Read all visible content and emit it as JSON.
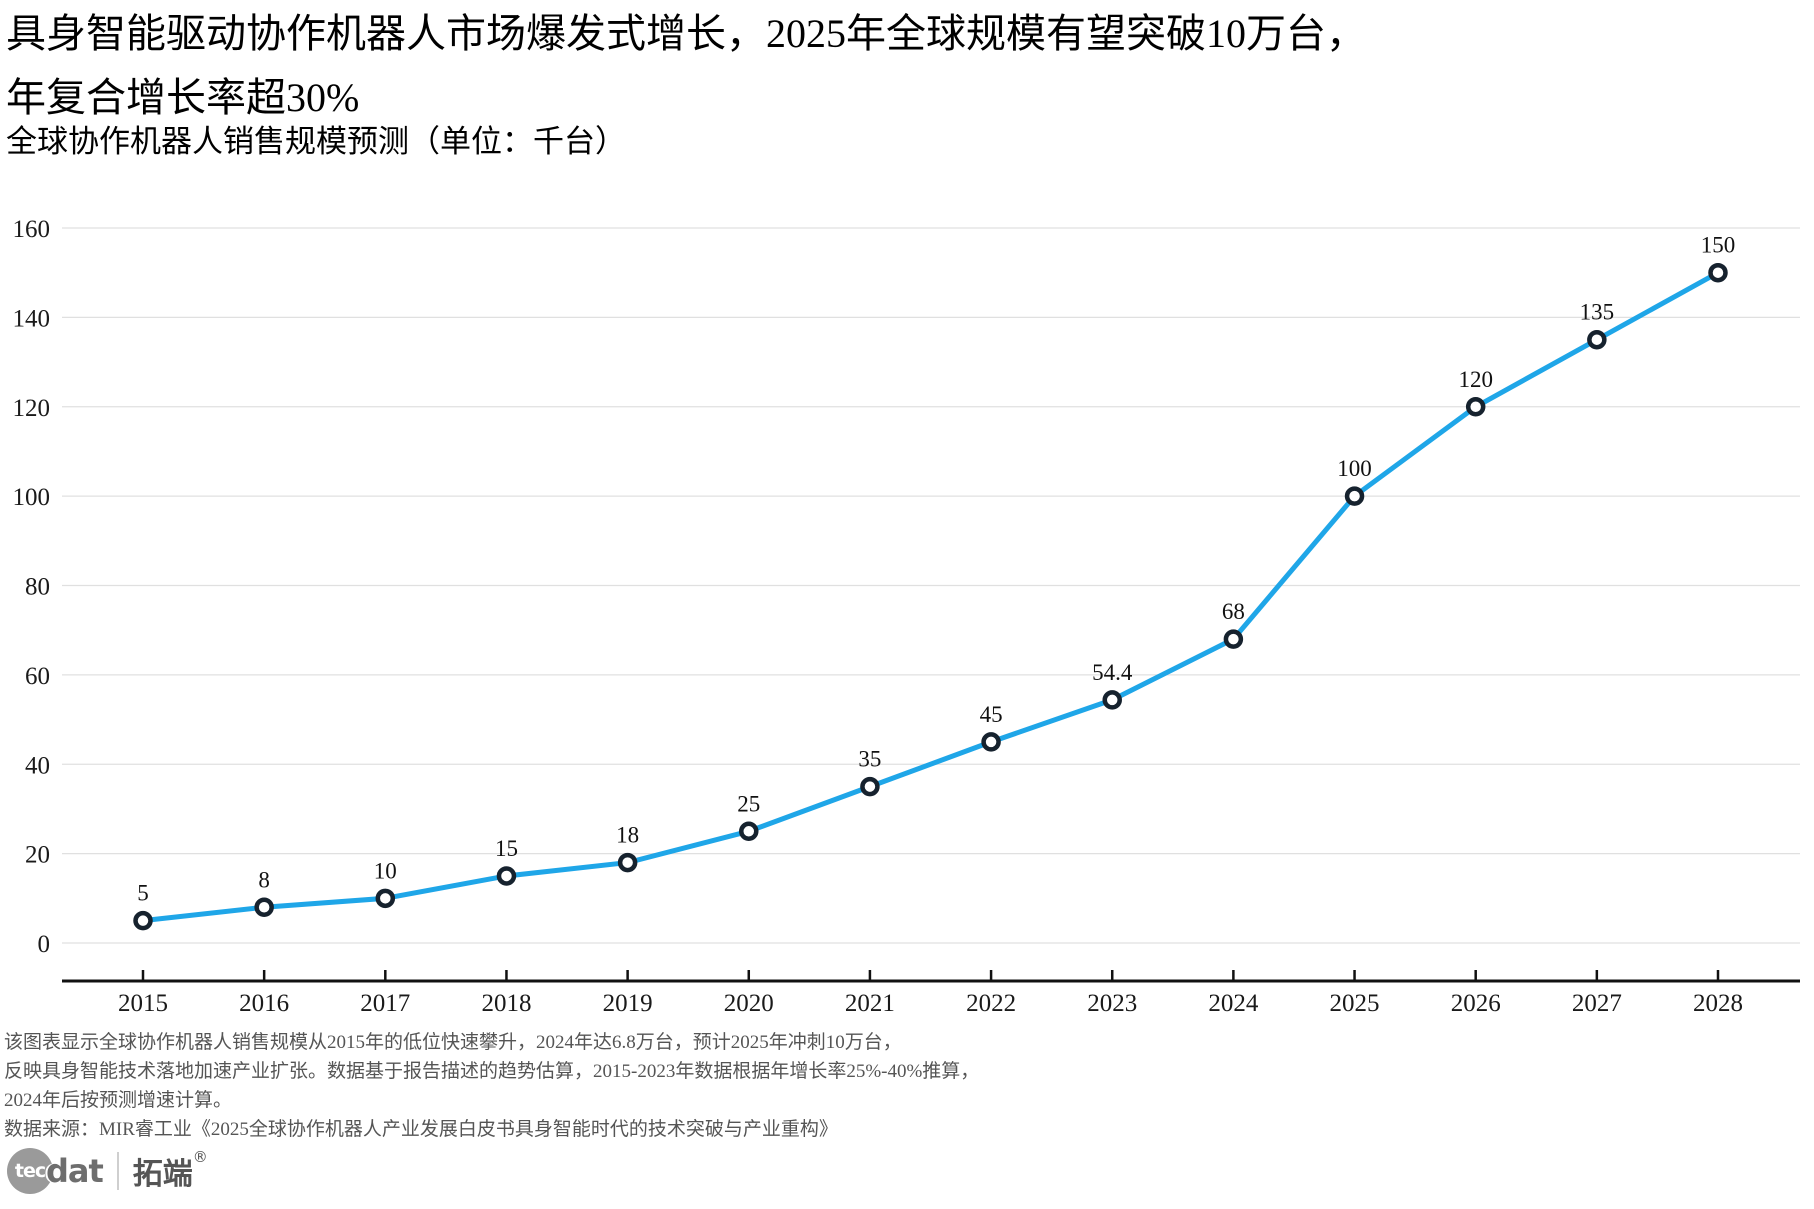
{
  "header": {
    "title_line1": "具身智能驱动协作机器人市场爆发式增长，2025年全球规模有望突破10万台，",
    "title_line2": "年复合增长率超30%",
    "subtitle": "全球协作机器人销售规模预测（单位：千台）"
  },
  "chart_data": {
    "type": "line",
    "title": "全球协作机器人销售规模预测（单位：千台）",
    "x": [
      2015,
      2016,
      2017,
      2018,
      2019,
      2020,
      2021,
      2022,
      2023,
      2024,
      2025,
      2026,
      2027,
      2028
    ],
    "series": [
      {
        "name": "全球协作机器人销售规模（千台）",
        "values": [
          5,
          8,
          10,
          15,
          18,
          25,
          35,
          45,
          54.4,
          68,
          100,
          120,
          135,
          150
        ]
      }
    ],
    "point_labels": [
      "5",
      "8",
      "10",
      "15",
      "18",
      "25",
      "35",
      "45",
      "54.4",
      "68",
      "100",
      "120",
      "135",
      "150"
    ],
    "xlabel": "",
    "ylabel": "",
    "ylim": [
      0,
      160
    ],
    "yticks": [
      0,
      20,
      40,
      60,
      80,
      100,
      120,
      140,
      160
    ],
    "grid": "horizontal",
    "legend_position": "none",
    "line_color": "#1FA6E8",
    "marker_edge_color": "#16222E",
    "marker_fill_color": "#ffffff",
    "grid_color": "#e0e0e0",
    "axis_color": "#111111",
    "tick_label_color": "#1a1a1a",
    "data_label_color": "#111111"
  },
  "footer": {
    "lines": [
      "该图表显示全球协作机器人销售规模从2015年的低位快速攀升，2024年达6.8万台，预计2025年冲刺10万台，",
      "反映具身智能技术落地加速产业扩张。数据基于报告描述的趋势估算，2015-2023年数据根据年增长率25%-40%推算，",
      "2024年后按预测增速计算。",
      "数据来源：MIR睿工业《2025全球协作机器人产业发展白皮书具身智能时代的技术突破与产业重构》"
    ]
  },
  "logo": {
    "circle_text": "tec",
    "text": "dat",
    "brand": "拓端",
    "registered": "®"
  }
}
